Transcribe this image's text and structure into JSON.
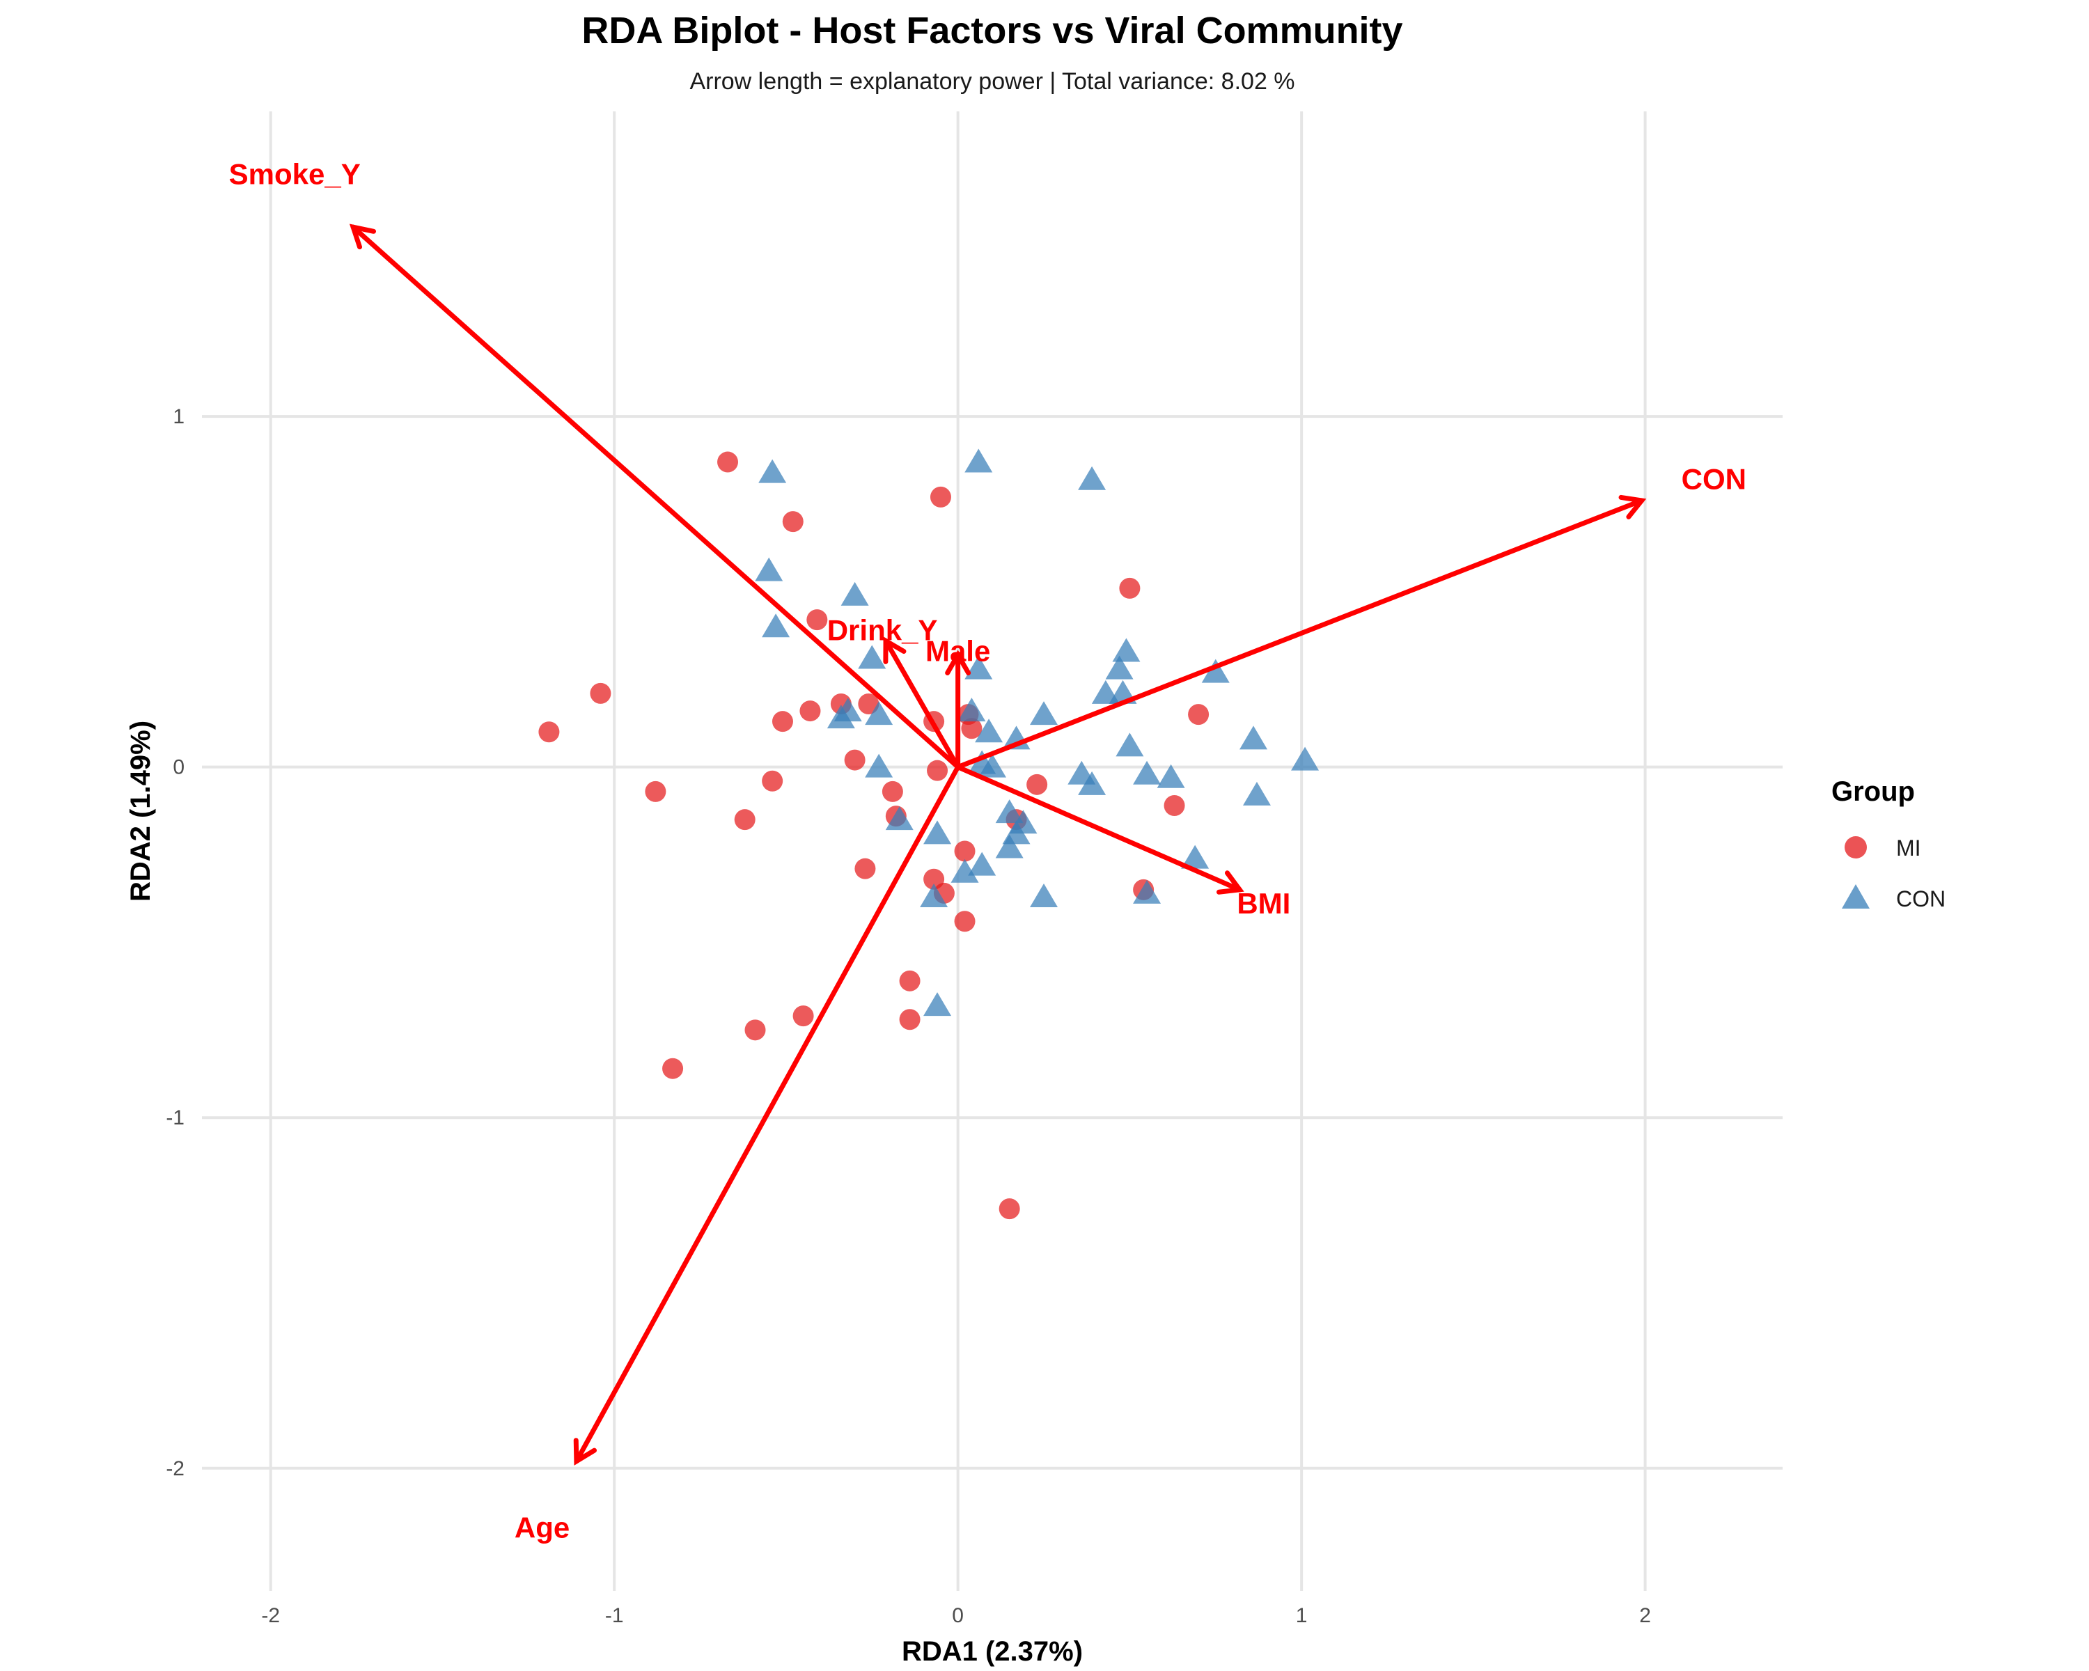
{
  "chart_data": {
    "type": "scatter",
    "title": "RDA Biplot - Host Factors vs Viral Community",
    "subtitle": "Arrow length = explanatory power | Total variance: 8.02 %",
    "xlabel": "RDA1 (2.37%)",
    "ylabel": "RDA2 (1.49%)",
    "xlim": [
      -2.2,
      2.4
    ],
    "ylim": [
      -2.35,
      1.87
    ],
    "xticks": [
      -2,
      -1,
      0,
      1,
      2
    ],
    "yticks": [
      -2,
      -1,
      0,
      1
    ],
    "grid": true,
    "legend": {
      "title": "Group",
      "position": "right",
      "entries": [
        {
          "label": "MI",
          "shape": "circle",
          "color": "#E41A1C"
        },
        {
          "label": "CON",
          "shape": "triangle",
          "color": "#377EB8"
        }
      ]
    },
    "series": [
      {
        "name": "MI",
        "shape": "circle",
        "color": "#E41A1C",
        "points": [
          [
            -0.67,
            0.87
          ],
          [
            -0.48,
            0.7
          ],
          [
            -0.05,
            0.77
          ],
          [
            0.5,
            0.51
          ],
          [
            -0.41,
            0.42
          ],
          [
            -1.04,
            0.21
          ],
          [
            -1.19,
            0.1
          ],
          [
            -0.51,
            0.13
          ],
          [
            -0.43,
            0.16
          ],
          [
            -0.34,
            0.18
          ],
          [
            -0.26,
            0.18
          ],
          [
            -0.07,
            0.13
          ],
          [
            0.03,
            0.15
          ],
          [
            0.04,
            0.11
          ],
          [
            0.7,
            0.15
          ],
          [
            -0.3,
            0.02
          ],
          [
            -0.06,
            -0.01
          ],
          [
            -0.54,
            -0.04
          ],
          [
            -0.88,
            -0.07
          ],
          [
            -0.62,
            -0.15
          ],
          [
            -0.19,
            -0.07
          ],
          [
            -0.18,
            -0.14
          ],
          [
            0.23,
            -0.05
          ],
          [
            0.17,
            -0.15
          ],
          [
            0.63,
            -0.11
          ],
          [
            -0.27,
            -0.29
          ],
          [
            0.02,
            -0.24
          ],
          [
            -0.07,
            -0.32
          ],
          [
            -0.04,
            -0.36
          ],
          [
            0.02,
            -0.44
          ],
          [
            0.54,
            -0.35
          ],
          [
            -0.14,
            -0.61
          ],
          [
            -0.45,
            -0.71
          ],
          [
            -0.14,
            -0.72
          ],
          [
            -0.59,
            -0.75
          ],
          [
            -0.83,
            -0.86
          ],
          [
            0.15,
            -1.26
          ]
        ]
      },
      {
        "name": "CON",
        "shape": "triangle",
        "color": "#377EB8",
        "points": [
          [
            -0.54,
            0.84
          ],
          [
            0.06,
            0.87
          ],
          [
            0.39,
            0.82
          ],
          [
            -0.55,
            0.56
          ],
          [
            -0.3,
            0.49
          ],
          [
            -0.53,
            0.4
          ],
          [
            0.49,
            0.33
          ],
          [
            0.47,
            0.28
          ],
          [
            -0.25,
            0.31
          ],
          [
            0.06,
            0.28
          ],
          [
            0.75,
            0.27
          ],
          [
            0.43,
            0.21
          ],
          [
            0.48,
            0.21
          ],
          [
            -0.32,
            0.16
          ],
          [
            -0.34,
            0.14
          ],
          [
            -0.23,
            0.15
          ],
          [
            0.04,
            0.16
          ],
          [
            0.25,
            0.15
          ],
          [
            0.09,
            0.1
          ],
          [
            0.17,
            0.08
          ],
          [
            0.86,
            0.08
          ],
          [
            0.5,
            0.06
          ],
          [
            1.01,
            0.02
          ],
          [
            0.07,
            0.01
          ],
          [
            0.1,
            0.0
          ],
          [
            -0.23,
            0.0
          ],
          [
            0.36,
            -0.02
          ],
          [
            0.55,
            -0.02
          ],
          [
            0.62,
            -0.03
          ],
          [
            0.39,
            -0.05
          ],
          [
            0.87,
            -0.08
          ],
          [
            0.15,
            -0.13
          ],
          [
            -0.17,
            -0.15
          ],
          [
            0.19,
            -0.16
          ],
          [
            0.17,
            -0.19
          ],
          [
            -0.06,
            -0.19
          ],
          [
            0.15,
            -0.23
          ],
          [
            0.07,
            -0.28
          ],
          [
            0.02,
            -0.3
          ],
          [
            0.69,
            -0.26
          ],
          [
            -0.07,
            -0.37
          ],
          [
            0.25,
            -0.37
          ],
          [
            0.55,
            -0.36
          ],
          [
            -0.06,
            -0.68
          ]
        ]
      }
    ],
    "vectors": [
      {
        "label": "Smoke_Y",
        "end": [
          -1.76,
          1.54
        ],
        "label_pos": [
          -1.93,
          1.69
        ]
      },
      {
        "label": "CON",
        "end": [
          1.99,
          0.76
        ],
        "label_pos": [
          2.2,
          0.82
        ]
      },
      {
        "label": "Drink_Y",
        "end": [
          -0.21,
          0.36
        ],
        "label_pos": [
          -0.22,
          0.39
        ]
      },
      {
        "label": "Male",
        "end": [
          0.0,
          0.32
        ],
        "label_pos": [
          0.0,
          0.33
        ]
      },
      {
        "label": "BMI",
        "end": [
          0.82,
          -0.35
        ],
        "label_pos": [
          0.89,
          -0.39
        ]
      },
      {
        "label": "Age",
        "end": [
          -1.11,
          -1.98
        ],
        "label_pos": [
          -1.21,
          -2.17
        ]
      }
    ],
    "vector_color": "#FF0000"
  }
}
